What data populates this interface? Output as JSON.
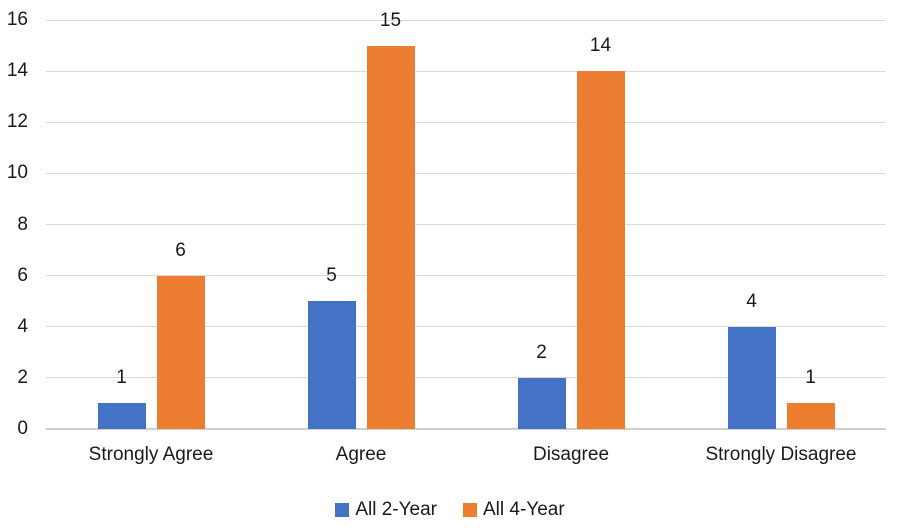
{
  "chart_data": {
    "type": "bar",
    "categories": [
      "Strongly Agree",
      "Agree",
      "Disagree",
      "Strongly Disagree"
    ],
    "series": [
      {
        "name": "All 2-Year",
        "color": "#4472C4",
        "values": [
          1,
          5,
          2,
          4
        ]
      },
      {
        "name": "All 4-Year",
        "color": "#ED7D31",
        "values": [
          6,
          15,
          14,
          1
        ]
      }
    ],
    "y_ticks": [
      0,
      2,
      4,
      6,
      8,
      10,
      12,
      14,
      16
    ],
    "ylim": [
      0,
      16
    ],
    "grid": true,
    "legend_position": "bottom",
    "data_labels": true
  },
  "colors": {
    "gridline": "#DADADA",
    "baseline": "#D0D0D0",
    "text": "#1A1A1A",
    "background": "#FFFFFF"
  }
}
